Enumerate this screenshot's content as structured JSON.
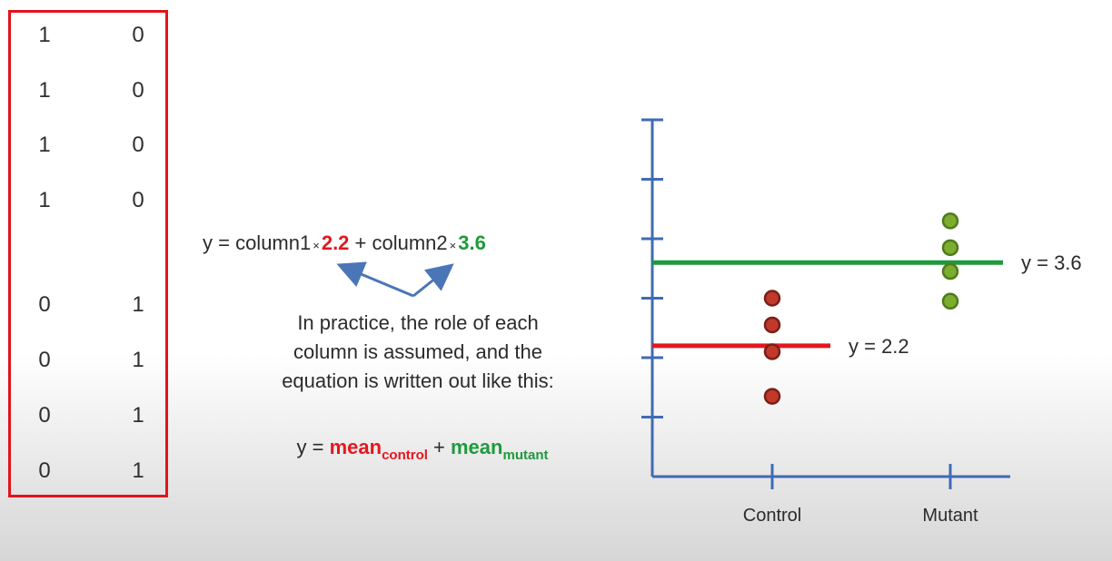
{
  "matrix": {
    "rows": [
      [
        "1",
        "0"
      ],
      [
        "1",
        "0"
      ],
      [
        "1",
        "0"
      ],
      [
        "1",
        "0"
      ],
      [
        "0",
        "1"
      ],
      [
        "0",
        "1"
      ],
      [
        "0",
        "1"
      ],
      [
        "0",
        "1"
      ]
    ]
  },
  "equation1": {
    "prefix": "y = column1",
    "times": "×",
    "coef1": "2.2",
    "mid": " + column2",
    "coef2": "3.6"
  },
  "note": {
    "line1": "In practice, the role of each",
    "line2": "column is assumed, and the",
    "line3": "equation is written out like this:"
  },
  "equation2": {
    "prefix": "y = ",
    "term1": "mean",
    "term1_sub": "control",
    "plus": " + ",
    "term2": "mean",
    "term2_sub": "mutant"
  },
  "chart_data": {
    "type": "scatter",
    "categories": [
      "Control",
      "Mutant"
    ],
    "series": [
      {
        "category": "Control",
        "color": "#c0392b",
        "values": [
          3.0,
          2.55,
          2.1,
          1.35
        ]
      },
      {
        "category": "Mutant",
        "color": "#7cad2e",
        "values": [
          4.3,
          3.85,
          3.45,
          2.95
        ]
      }
    ],
    "mean_lines": [
      {
        "category": "Control",
        "value": 2.2,
        "label": "y = 2.2",
        "color": "#e3171f"
      },
      {
        "category": "Mutant",
        "value": 3.6,
        "label": "y = 3.6",
        "color": "#1f9a3c"
      }
    ],
    "ylim": [
      0,
      6
    ],
    "title": "",
    "xlabel": "",
    "ylabel": ""
  },
  "colors": {
    "axis": "#3f6bb5",
    "arrow": "#4a76b8",
    "matrix_border": "#e0141c"
  }
}
